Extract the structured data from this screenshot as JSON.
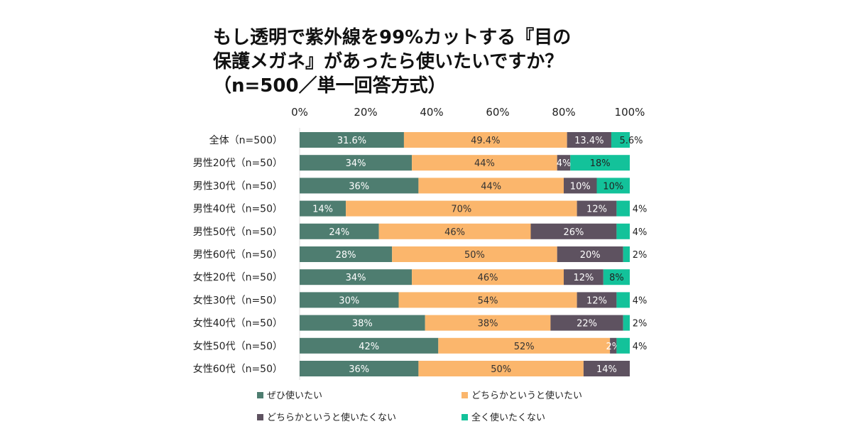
{
  "chart_data": {
    "type": "bar",
    "orientation": "horizontal-stacked-100",
    "title_lines": [
      "もし透明で紫外線を99%カットする『目の",
      "保護メガネ』があったら使いたいですか？",
      "（n=500／単一回答方式）"
    ],
    "xlim": [
      0,
      100
    ],
    "x_ticks": [
      "0%",
      "20%",
      "40%",
      "60%",
      "80%",
      "100%"
    ],
    "categories": [
      "全体（n=500）",
      "男性20代（n=50）",
      "男性30代（n=50）",
      "男性40代（n=50）",
      "男性50代（n=50）",
      "男性60代（n=50）",
      "女性20代（n=50）",
      "女性30代（n=50）",
      "女性40代（n=50）",
      "女性50代（n=50）",
      "女性60代（n=50）"
    ],
    "series": [
      {
        "name": "ぜひ使いたい",
        "color": "#4e7d70",
        "values": [
          31.6,
          34,
          36,
          14,
          24,
          28,
          34,
          30,
          38,
          42,
          36
        ],
        "labels": [
          "31.6%",
          "34%",
          "36%",
          "14%",
          "24%",
          "28%",
          "34%",
          "30%",
          "38%",
          "42%",
          "36%"
        ]
      },
      {
        "name": "どちらかというと使いたい",
        "color": "#fbb66c",
        "values": [
          49.4,
          44,
          44,
          70,
          46,
          50,
          46,
          54,
          38,
          52,
          50
        ],
        "labels": [
          "49.4%",
          "44%",
          "44%",
          "70%",
          "46%",
          "50%",
          "46%",
          "54%",
          "38%",
          "52%",
          "50%"
        ]
      },
      {
        "name": "どちらかというと使いたくない",
        "color": "#5e5260",
        "values": [
          13.4,
          4,
          10,
          12,
          26,
          20,
          12,
          12,
          22,
          2,
          14
        ],
        "labels": [
          "13.4%",
          "4%",
          "10%",
          "12%",
          "26%",
          "20%",
          "12%",
          "12%",
          "22%",
          "2%",
          "14%"
        ]
      },
      {
        "name": "全く使いたくない",
        "color": "#13c29a",
        "values": [
          5.6,
          18,
          10,
          4,
          4,
          2,
          8,
          4,
          2,
          4,
          0
        ],
        "labels": [
          "5.6%",
          "18%",
          "10%",
          "4%",
          "4%",
          "2%",
          "8%",
          "4%",
          "2%",
          "4%",
          ""
        ]
      }
    ],
    "legend_position": "bottom",
    "grid": false
  }
}
